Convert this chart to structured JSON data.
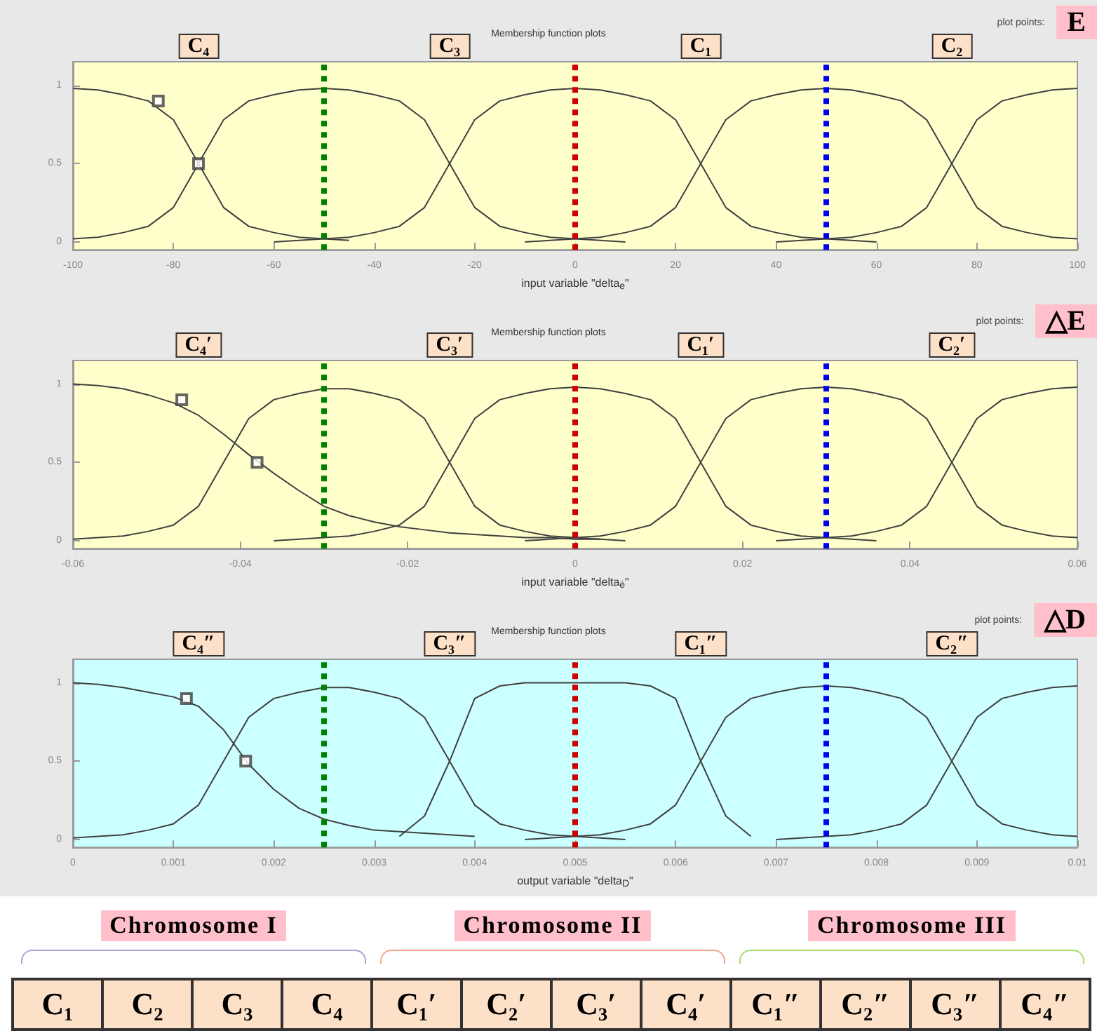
{
  "chart_data": [
    {
      "type": "line",
      "title": "Membership function plots",
      "xlabel": "input variable \"delta$_{e}$\"",
      "marker": "none",
      "line_style": "solid",
      "grid": false,
      "annotations": [
        "plot points:",
        "E",
        "C₄",
        "C₃",
        "C₁",
        "C₂"
      ],
      "xlim": [
        -100,
        100
      ],
      "xticks": [
        -100,
        -80,
        -60,
        -40,
        -20,
        0,
        20,
        40,
        60,
        80,
        100
      ],
      "ylim": [
        -0.05,
        1.15
      ],
      "yticks": [
        0,
        0.5,
        1
      ],
      "x": [
        -100,
        -95,
        -90,
        -85,
        -80,
        -75,
        -70,
        -65,
        -60,
        -55,
        -50,
        -45,
        -40,
        -35,
        -30,
        -25,
        -20,
        -15,
        -10,
        -5,
        0,
        5,
        10,
        15,
        20,
        25,
        30,
        35,
        40,
        45,
        50,
        55,
        60,
        65,
        70,
        75,
        80,
        85,
        90,
        95,
        100
      ],
      "ref_lines": [
        {
          "axis": "x",
          "value": -50,
          "color": "#008000",
          "line_style": "dotted"
        },
        {
          "axis": "x",
          "value": 0,
          "color": "#cc0000",
          "line_style": "dotted"
        },
        {
          "axis": "x",
          "value": 50,
          "color": "#0000ee",
          "line_style": "dotted"
        }
      ],
      "series": [
        {
          "color": "#404040",
          "values": [
            0.98,
            0.97,
            0.94,
            0.9,
            0.78,
            0.5,
            0.22,
            0.1,
            0.06,
            0.03,
            0.02,
            0.01,
            null,
            null,
            null,
            null,
            null,
            null,
            null,
            null,
            null,
            null,
            null,
            null,
            null,
            null,
            null,
            null,
            null,
            null,
            null,
            null,
            null,
            null,
            null,
            null,
            null,
            null,
            null,
            null,
            null
          ]
        },
        {
          "color": "#404040",
          "values": [
            0.02,
            0.03,
            0.06,
            0.1,
            0.22,
            0.5,
            0.78,
            0.9,
            0.94,
            0.97,
            0.98,
            0.97,
            0.94,
            0.9,
            0.78,
            0.5,
            0.22,
            0.1,
            0.06,
            0.03,
            0.02,
            0.01,
            0,
            null,
            null,
            null,
            null,
            null,
            null,
            null,
            null,
            null,
            null,
            null,
            null,
            null,
            null,
            null,
            null,
            null,
            null
          ]
        },
        {
          "color": "#404040",
          "values": [
            null,
            null,
            null,
            null,
            null,
            null,
            null,
            null,
            0,
            0.01,
            0.02,
            0.03,
            0.06,
            0.1,
            0.22,
            0.5,
            0.78,
            0.9,
            0.94,
            0.97,
            0.98,
            0.97,
            0.94,
            0.9,
            0.78,
            0.5,
            0.22,
            0.1,
            0.06,
            0.03,
            0.02,
            0.01,
            0,
            null,
            null,
            null,
            null,
            null,
            null,
            null,
            null
          ]
        },
        {
          "color": "#404040",
          "values": [
            null,
            null,
            null,
            null,
            null,
            null,
            null,
            null,
            null,
            null,
            null,
            null,
            null,
            null,
            null,
            null,
            null,
            null,
            0,
            0.01,
            0.02,
            0.03,
            0.06,
            0.1,
            0.22,
            0.5,
            0.78,
            0.9,
            0.94,
            0.97,
            0.98,
            0.97,
            0.94,
            0.9,
            0.78,
            0.5,
            0.22,
            0.1,
            0.06,
            0.03,
            0.02
          ]
        },
        {
          "color": "#404040",
          "values": [
            null,
            null,
            null,
            null,
            null,
            null,
            null,
            null,
            null,
            null,
            null,
            null,
            null,
            null,
            null,
            null,
            null,
            null,
            null,
            null,
            null,
            null,
            null,
            null,
            null,
            null,
            null,
            null,
            0,
            0.01,
            0.02,
            0.03,
            0.06,
            0.1,
            0.22,
            0.5,
            0.78,
            0.9,
            0.94,
            0.97,
            0.98
          ]
        },
        {
          "type": "scatter",
          "marker": "square",
          "color": "#404040",
          "x": [
            -83,
            -75
          ],
          "values": [
            0.9,
            0.5
          ]
        }
      ]
    },
    {
      "type": "line",
      "title": "Membership function plots",
      "xlabel": "input variable \"delta$_{ė}$\"",
      "marker": "none",
      "line_style": "solid",
      "grid": false,
      "annotations": [
        "plot points:",
        "△E",
        "C₄′",
        "C₃′",
        "C₁′",
        "C₂′"
      ],
      "xlim": [
        -0.06,
        0.06
      ],
      "xticks": [
        -0.06,
        -0.04,
        -0.02,
        0,
        0.02,
        0.04,
        0.06
      ],
      "ylim": [
        -0.05,
        1.15
      ],
      "yticks": [
        0,
        0.5,
        1
      ],
      "x": [
        -0.06,
        -0.057,
        -0.054,
        -0.051,
        -0.048,
        -0.045,
        -0.042,
        -0.039,
        -0.036,
        -0.033,
        -0.03,
        -0.027,
        -0.024,
        -0.021,
        -0.018,
        -0.015,
        -0.012,
        -0.009,
        -0.006,
        -0.003,
        0,
        0.003,
        0.006,
        0.009,
        0.012,
        0.015,
        0.018,
        0.021,
        0.024,
        0.027,
        0.03,
        0.033,
        0.036,
        0.039,
        0.042,
        0.045,
        0.048,
        0.051,
        0.054,
        0.057,
        0.06
      ],
      "ref_lines": [
        {
          "axis": "x",
          "value": -0.03,
          "color": "#008000",
          "line_style": "dotted"
        },
        {
          "axis": "x",
          "value": 0,
          "color": "#cc0000",
          "line_style": "dotted"
        },
        {
          "axis": "x",
          "value": 0.03,
          "color": "#0000ee",
          "line_style": "dotted"
        }
      ],
      "series": [
        {
          "color": "#404040",
          "values": [
            1,
            0.99,
            0.97,
            0.93,
            0.88,
            0.8,
            0.68,
            0.55,
            0.43,
            0.32,
            0.22,
            0.16,
            0.12,
            0.09,
            0.07,
            0.05,
            0.04,
            0.03,
            0.02,
            0.02,
            0.01,
            0.01,
            null,
            null,
            null,
            null,
            null,
            null,
            null,
            null,
            null,
            null,
            null,
            null,
            null,
            null,
            null,
            null,
            null,
            null,
            null
          ]
        },
        {
          "color": "#404040",
          "values": [
            0.01,
            0.02,
            0.03,
            0.06,
            0.1,
            0.22,
            0.5,
            0.78,
            0.9,
            0.94,
            0.97,
            0.97,
            0.94,
            0.9,
            0.78,
            0.5,
            0.22,
            0.1,
            0.06,
            0.03,
            0.02,
            0.01,
            0,
            null,
            null,
            null,
            null,
            null,
            null,
            null,
            null,
            null,
            null,
            null,
            null,
            null,
            null,
            null,
            null,
            null,
            null
          ]
        },
        {
          "color": "#404040",
          "values": [
            null,
            null,
            null,
            null,
            null,
            null,
            null,
            null,
            0,
            0.01,
            0.02,
            0.03,
            0.06,
            0.1,
            0.22,
            0.5,
            0.78,
            0.9,
            0.94,
            0.97,
            0.98,
            0.97,
            0.94,
            0.9,
            0.78,
            0.5,
            0.22,
            0.1,
            0.06,
            0.03,
            0.02,
            0.01,
            0,
            null,
            null,
            null,
            null,
            null,
            null,
            null,
            null
          ]
        },
        {
          "color": "#404040",
          "values": [
            null,
            null,
            null,
            null,
            null,
            null,
            null,
            null,
            null,
            null,
            null,
            null,
            null,
            null,
            null,
            null,
            null,
            null,
            0,
            0.01,
            0.02,
            0.03,
            0.06,
            0.1,
            0.22,
            0.5,
            0.78,
            0.9,
            0.94,
            0.97,
            0.98,
            0.97,
            0.94,
            0.9,
            0.78,
            0.5,
            0.22,
            0.1,
            0.06,
            0.03,
            0.02
          ]
        },
        {
          "color": "#404040",
          "values": [
            null,
            null,
            null,
            null,
            null,
            null,
            null,
            null,
            null,
            null,
            null,
            null,
            null,
            null,
            null,
            null,
            null,
            null,
            null,
            null,
            null,
            null,
            null,
            null,
            null,
            null,
            null,
            null,
            0,
            0.01,
            0.02,
            0.03,
            0.06,
            0.1,
            0.22,
            0.5,
            0.78,
            0.9,
            0.94,
            0.97,
            0.98
          ]
        },
        {
          "type": "scatter",
          "marker": "square",
          "color": "#404040",
          "x": [
            -0.047,
            -0.038
          ],
          "values": [
            0.9,
            0.5
          ]
        }
      ]
    },
    {
      "type": "line",
      "title": "Membership function plots",
      "xlabel": "output variable \"delta$_{D}$\"",
      "marker": "none",
      "line_style": "solid",
      "grid": false,
      "annotations": [
        "plot points:",
        "△D",
        "C₄″",
        "C₃″",
        "C₁″",
        "C₂″"
      ],
      "xlim": [
        0,
        0.01
      ],
      "xticks": [
        0,
        0.001,
        0.002,
        0.003,
        0.004,
        0.005,
        0.006,
        0.007,
        0.008,
        0.009,
        0.01
      ],
      "ylim": [
        -0.05,
        1.15
      ],
      "yticks": [
        0,
        0.5,
        1
      ],
      "x": [
        0,
        0.00025,
        0.0005,
        0.00075,
        0.001,
        0.00125,
        0.0015,
        0.00175,
        0.002,
        0.00225,
        0.0025,
        0.00275,
        0.003,
        0.00325,
        0.0035,
        0.00375,
        0.004,
        0.00425,
        0.0045,
        0.00475,
        0.005,
        0.00525,
        0.0055,
        0.00575,
        0.006,
        0.00625,
        0.0065,
        0.00675,
        0.007,
        0.00725,
        0.0075,
        0.00775,
        0.008,
        0.00825,
        0.0085,
        0.00875,
        0.009,
        0.00925,
        0.0095,
        0.00975,
        0.01
      ],
      "ref_lines": [
        {
          "axis": "x",
          "value": 0.0025,
          "color": "#008000",
          "line_style": "dotted"
        },
        {
          "axis": "x",
          "value": 0.005,
          "color": "#cc0000",
          "line_style": "dotted"
        },
        {
          "axis": "x",
          "value": 0.0075,
          "color": "#0000ee",
          "line_style": "dotted"
        }
      ],
      "series": [
        {
          "color": "#404040",
          "values": [
            1,
            0.99,
            0.97,
            0.94,
            0.91,
            0.85,
            0.7,
            0.48,
            0.32,
            0.2,
            0.13,
            0.09,
            0.06,
            0.05,
            0.04,
            0.03,
            0.02,
            null,
            null,
            null,
            null,
            null,
            null,
            null,
            null,
            null,
            null,
            null,
            null,
            null,
            null,
            null,
            null,
            null,
            null,
            null,
            null,
            null,
            null,
            null,
            null
          ]
        },
        {
          "color": "#404040",
          "values": [
            0.01,
            0.02,
            0.03,
            0.06,
            0.1,
            0.22,
            0.5,
            0.78,
            0.9,
            0.94,
            0.97,
            0.97,
            0.94,
            0.9,
            0.78,
            0.5,
            0.22,
            0.1,
            0.06,
            0.03,
            0.02,
            0.01,
            0,
            null,
            null,
            null,
            null,
            null,
            null,
            null,
            null,
            null,
            null,
            null,
            null,
            null,
            null,
            null,
            null,
            null,
            null
          ]
        },
        {
          "color": "#404040",
          "values": [
            null,
            null,
            null,
            null,
            null,
            null,
            null,
            null,
            null,
            null,
            null,
            null,
            null,
            0.02,
            0.15,
            0.5,
            0.9,
            0.98,
            1,
            1,
            1,
            1,
            1,
            0.98,
            0.9,
            0.5,
            0.15,
            0.02,
            null,
            null,
            null,
            null,
            null,
            null,
            null,
            null,
            null,
            null,
            null,
            null,
            null
          ]
        },
        {
          "color": "#404040",
          "values": [
            null,
            null,
            null,
            null,
            null,
            null,
            null,
            null,
            null,
            null,
            null,
            null,
            null,
            null,
            null,
            null,
            null,
            null,
            0,
            0.01,
            0.02,
            0.03,
            0.06,
            0.1,
            0.22,
            0.5,
            0.78,
            0.9,
            0.94,
            0.97,
            0.98,
            0.97,
            0.94,
            0.9,
            0.78,
            0.5,
            0.22,
            0.1,
            0.06,
            0.03,
            0.02
          ]
        },
        {
          "color": "#404040",
          "values": [
            null,
            null,
            null,
            null,
            null,
            null,
            null,
            null,
            null,
            null,
            null,
            null,
            null,
            null,
            null,
            null,
            null,
            null,
            null,
            null,
            null,
            null,
            null,
            null,
            null,
            null,
            null,
            null,
            0,
            0.01,
            0.02,
            0.03,
            0.06,
            0.1,
            0.22,
            0.5,
            0.78,
            0.9,
            0.94,
            0.97,
            0.98
          ]
        },
        {
          "type": "scatter",
          "marker": "square",
          "color": "#404040",
          "x": [
            0.00113,
            0.00172
          ],
          "values": [
            0.9,
            0.5
          ]
        }
      ]
    },
    {
      "type": "other",
      "annotations": [
        "Chromosome I",
        "Chromosome II",
        "Chromosome III"
      ],
      "categories": [
        "C₁",
        "C₂",
        "C₃",
        "C₄",
        "C₁′",
        "C₂′",
        "C₃′",
        "C₄′",
        "C₁″",
        "C₂″",
        "C₃″",
        "C₄″"
      ]
    }
  ]
}
